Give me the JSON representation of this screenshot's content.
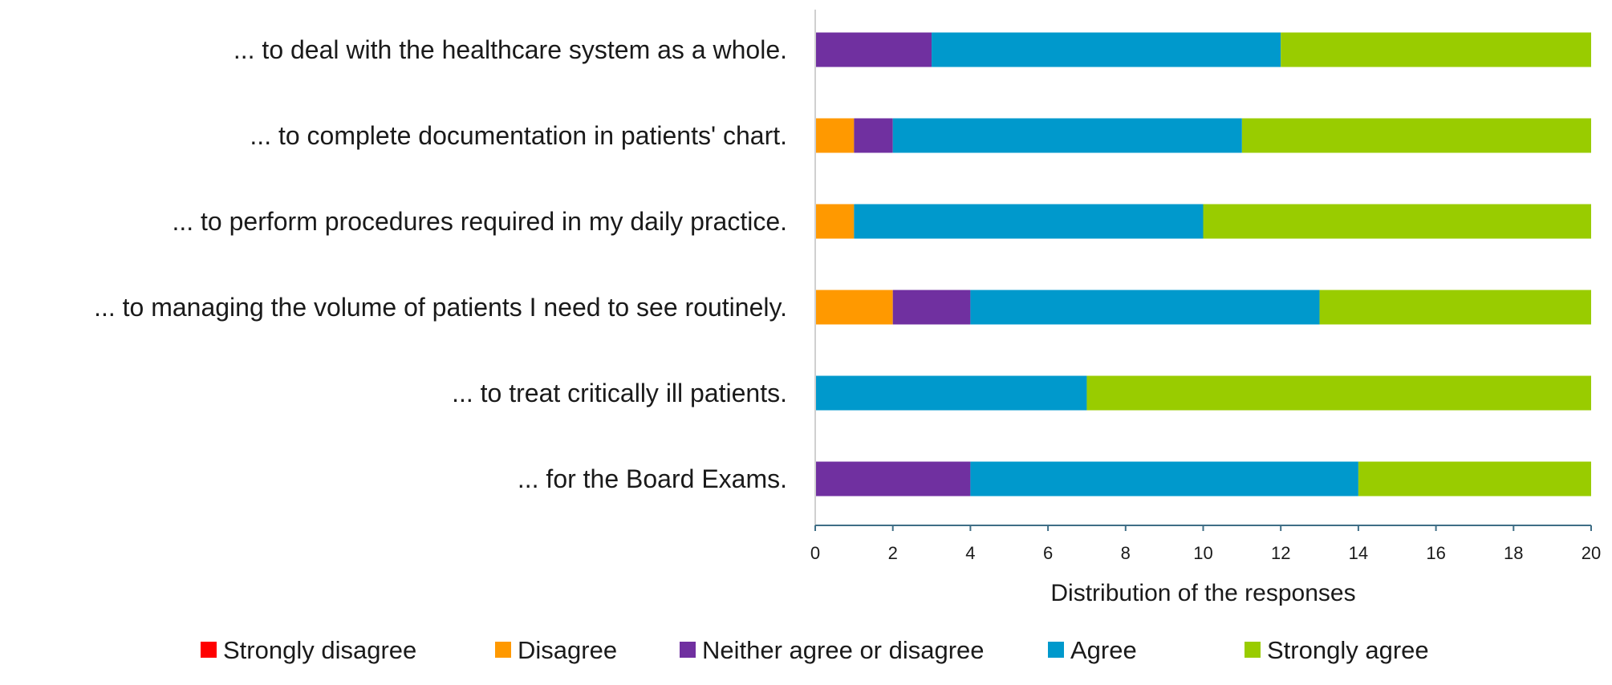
{
  "chart_data": {
    "type": "bar",
    "orientation": "horizontal",
    "stacked": true,
    "title": "",
    "xlabel": "Distribution of the responses",
    "ylabel": "",
    "xlim": [
      0,
      20
    ],
    "x_ticks": [
      "0",
      "2",
      "4",
      "6",
      "8",
      "10",
      "12",
      "14",
      "16",
      "18",
      "20"
    ],
    "grid": false,
    "legend_position": "bottom",
    "categories": [
      "... to deal with the healthcare system as a whole.",
      "... to complete documentation in patients' chart.",
      "... to perform procedures required in my daily practice.",
      "... to managing the volume of patients I need to see routinely.",
      "... to treat critically ill patients.",
      "... for the Board Exams."
    ],
    "series": [
      {
        "name": "Strongly disagree",
        "color": "#ff0000",
        "values": [
          0,
          0,
          0,
          0,
          0,
          0
        ]
      },
      {
        "name": "Disagree",
        "color": "#ff9900",
        "values": [
          0,
          1,
          1,
          2,
          0,
          0
        ]
      },
      {
        "name": "Neither agree or disagree",
        "color": "#7030a0",
        "values": [
          3,
          1,
          0,
          2,
          0,
          4
        ]
      },
      {
        "name": "Agree",
        "color": "#0099cc",
        "values": [
          9,
          9,
          9,
          9,
          7,
          10
        ]
      },
      {
        "name": "Strongly agree",
        "color": "#99cc00",
        "values": [
          8,
          9,
          10,
          7,
          13,
          6
        ]
      }
    ]
  }
}
